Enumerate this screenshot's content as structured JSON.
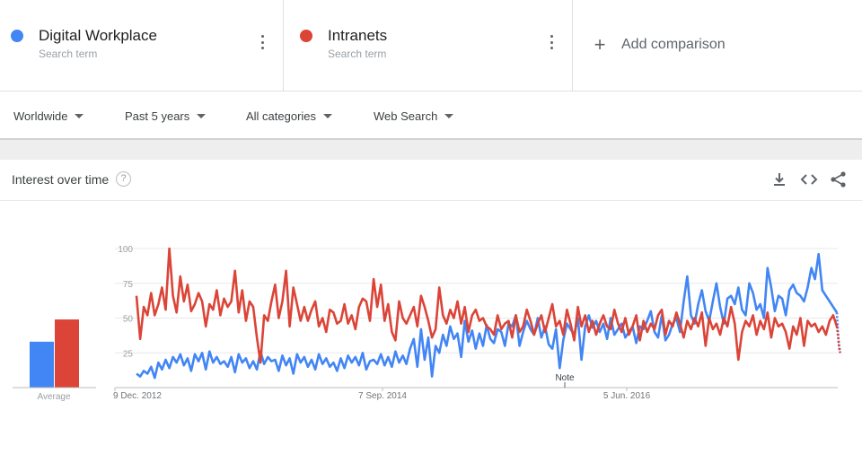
{
  "terms": [
    {
      "name": "Digital Workplace",
      "sub": "Search term",
      "color": "#4285f4"
    },
    {
      "name": "Intranets",
      "sub": "Search term",
      "color": "#db4437"
    }
  ],
  "add_comparison": "Add comparison",
  "filters": {
    "region": "Worldwide",
    "time": "Past 5 years",
    "category": "All categories",
    "search_type": "Web Search"
  },
  "card": {
    "title": "Interest over time",
    "help": "?",
    "icons": [
      "download-icon",
      "embed-icon",
      "share-icon"
    ]
  },
  "chart_data": {
    "type": "line",
    "x_tick_labels": [
      "9 Dec. 2012",
      "7 Sep. 2014",
      "5 Jun. 2016"
    ],
    "y_ticks": [
      25,
      50,
      75,
      100
    ],
    "ylim": [
      0,
      100
    ],
    "grid": true,
    "note": "Note",
    "average_label": "Average",
    "averages": [
      {
        "name": "Digital Workplace",
        "value": 33
      },
      {
        "name": "Intranets",
        "value": 49
      }
    ],
    "series": [
      {
        "name": "Digital Workplace",
        "color": "#4285f4",
        "values": [
          10,
          8,
          12,
          10,
          15,
          7,
          18,
          13,
          20,
          14,
          22,
          18,
          24,
          16,
          21,
          12,
          24,
          19,
          25,
          13,
          26,
          18,
          22,
          17,
          19,
          15,
          22,
          11,
          24,
          18,
          21,
          14,
          19,
          13,
          26,
          17,
          22,
          19,
          20,
          12,
          23,
          16,
          21,
          10,
          24,
          18,
          22,
          15,
          20,
          13,
          24,
          17,
          21,
          15,
          18,
          12,
          21,
          14,
          23,
          18,
          22,
          16,
          25,
          13,
          19,
          20,
          17,
          24,
          16,
          22,
          15,
          26,
          18,
          23,
          17,
          28,
          35,
          15,
          42,
          20,
          36,
          8,
          30,
          25,
          38,
          30,
          44,
          35,
          39,
          22,
          48,
          33,
          41,
          28,
          39,
          30,
          45,
          35,
          32,
          42,
          40,
          30,
          46,
          44,
          52,
          30,
          40,
          48,
          42,
          38,
          50,
          36,
          44,
          31,
          28,
          42,
          14,
          34,
          46,
          42,
          38,
          50,
          20,
          44,
          52,
          43,
          48,
          40,
          46,
          35,
          50,
          38,
          42,
          46,
          36,
          40,
          44,
          32,
          44,
          42,
          48,
          55,
          40,
          36,
          52,
          34,
          38,
          46,
          50,
          40,
          62,
          80,
          52,
          46,
          60,
          70,
          55,
          48,
          62,
          75,
          58,
          46,
          64,
          66,
          60,
          72,
          56,
          52,
          75,
          68,
          56,
          60,
          50,
          86,
          72,
          55,
          66,
          64,
          52,
          70,
          74,
          68,
          66,
          62,
          72,
          86,
          78,
          96,
          70,
          66,
          62,
          58,
          54
        ],
        "dotted_tail": [
          54,
          40,
          30,
          25
        ]
      },
      {
        "name": "Intranets",
        "color": "#db4437",
        "values": [
          66,
          35,
          58,
          52,
          68,
          52,
          60,
          72,
          56,
          100,
          66,
          54,
          80,
          62,
          74,
          55,
          60,
          68,
          62,
          44,
          60,
          56,
          70,
          52,
          64,
          58,
          62,
          84,
          54,
          70,
          48,
          62,
          58,
          36,
          18,
          52,
          48,
          62,
          74,
          50,
          62,
          84,
          44,
          72,
          60,
          48,
          58,
          48,
          56,
          62,
          44,
          50,
          40,
          56,
          54,
          46,
          48,
          60,
          46,
          52,
          42,
          58,
          64,
          62,
          48,
          78,
          58,
          74,
          48,
          60,
          40,
          34,
          62,
          50,
          46,
          52,
          58,
          44,
          66,
          58,
          48,
          36,
          42,
          72,
          52,
          46,
          56,
          50,
          62,
          46,
          58,
          40,
          52,
          56,
          48,
          50,
          44,
          42,
          38,
          52,
          42,
          46,
          48,
          36,
          52,
          40,
          44,
          56,
          48,
          38,
          46,
          52,
          40,
          50,
          60,
          44,
          48,
          38,
          56,
          46,
          34,
          58,
          44,
          52,
          40,
          48,
          38,
          46,
          52,
          44,
          42,
          56,
          46,
          40,
          50,
          38,
          44,
          52,
          34,
          48,
          40,
          46,
          42,
          52,
          56,
          38,
          48,
          44,
          54,
          46,
          36,
          48,
          42,
          50,
          44,
          54,
          30,
          50,
          42,
          46,
          38,
          50,
          44,
          58,
          46,
          20,
          40,
          48,
          44,
          52,
          38,
          48,
          42,
          54,
          36,
          50,
          44,
          46,
          40,
          28,
          44,
          38,
          50,
          30,
          48,
          44,
          46,
          40,
          44,
          38,
          48,
          52,
          44
        ],
        "dotted_tail": [
          44,
          38,
          30,
          25
        ]
      }
    ]
  }
}
